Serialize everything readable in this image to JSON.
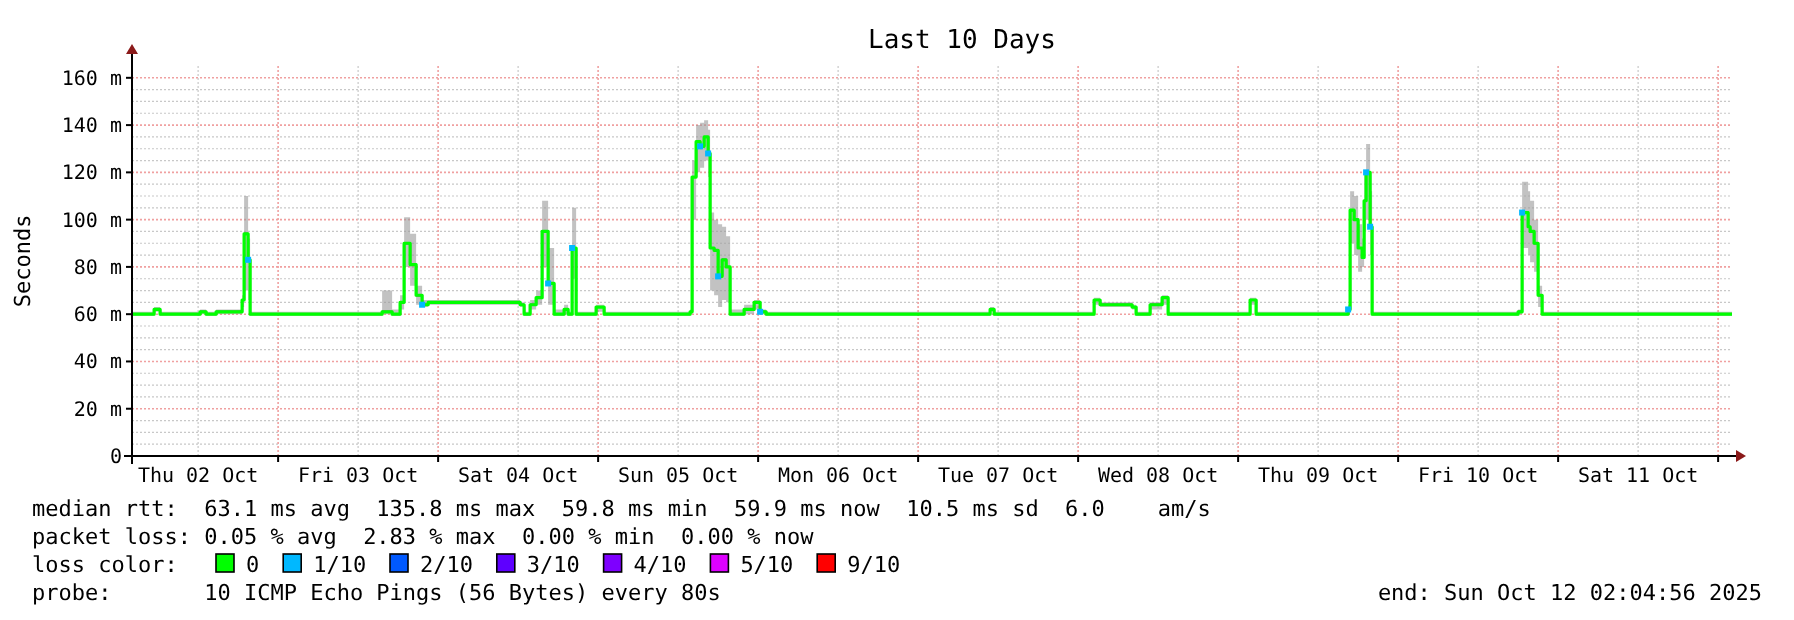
{
  "chart_data": {
    "type": "line",
    "title": "Last 10 Days",
    "ylabel": "Seconds",
    "legend_title": "loss color:",
    "legend": "bottom",
    "grid": true,
    "xlim": [
      "2025-10-02T02:05",
      "2025-10-12T02:05"
    ],
    "xticks": [
      {
        "value": "2025-10-02T12:00",
        "label": "Thu 02 Oct"
      },
      {
        "value": "2025-10-03T00:00",
        "label": null
      },
      {
        "value": "2025-10-03T12:00",
        "label": "Fri 03 Oct"
      },
      {
        "value": "2025-10-04T00:00",
        "label": null
      },
      {
        "value": "2025-10-04T12:00",
        "label": "Sat 04 Oct"
      },
      {
        "value": "2025-10-05T00:00",
        "label": null
      },
      {
        "value": "2025-10-05T12:00",
        "label": "Sun 05 Oct"
      },
      {
        "value": "2025-10-06T00:00",
        "label": null
      },
      {
        "value": "2025-10-06T12:00",
        "label": "Mon 06 Oct"
      },
      {
        "value": "2025-10-07T00:00",
        "label": null
      },
      {
        "value": "2025-10-07T12:00",
        "label": "Tue 07 Oct"
      },
      {
        "value": "2025-10-08T00:00",
        "label": null
      },
      {
        "value": "2025-10-08T12:00",
        "label": "Wed 08 Oct"
      },
      {
        "value": "2025-10-09T00:00",
        "label": null
      },
      {
        "value": "2025-10-09T12:00",
        "label": "Thu 09 Oct"
      },
      {
        "value": "2025-10-10T00:00",
        "label": null
      },
      {
        "value": "2025-10-10T12:00",
        "label": "Fri 10 Oct"
      },
      {
        "value": "2025-10-11T00:00",
        "label": null
      },
      {
        "value": "2025-10-11T12:00",
        "label": "Sat 11 Oct"
      },
      {
        "value": "2025-10-12T00:00",
        "label": null
      }
    ],
    "ylim": [
      0,
      165
    ],
    "yticks": [
      0,
      {
        "value": 20,
        "label": "20 m"
      },
      {
        "value": 40,
        "label": "40 m"
      },
      {
        "value": 60,
        "label": "60 m"
      },
      {
        "value": 80,
        "label": "80 m"
      },
      {
        "value": 100,
        "label": "100 m"
      },
      {
        "value": 120,
        "label": "120 m"
      },
      {
        "value": 140,
        "label": "140 m"
      },
      {
        "value": 160,
        "label": "160 m"
      }
    ],
    "series": [
      {
        "name": "0",
        "color": "#00ff00",
        "x": [
          "2025-10-02T02:06",
          "2025-10-02T05:24",
          "2025-10-02T06:18",
          "2025-10-02T12:18",
          "2025-10-02T13:12",
          "2025-10-02T14:42",
          "2025-10-02T17:42",
          "2025-10-02T18:36",
          "2025-10-02T18:54",
          "2025-10-02T19:30",
          "2025-10-02T19:48",
          "2025-10-02T20:42",
          "2025-10-03T15:36",
          "2025-10-03T17:06",
          "2025-10-03T18:18",
          "2025-10-03T18:54",
          "2025-10-03T19:48",
          "2025-10-03T20:42",
          "2025-10-03T21:36",
          "2025-10-03T22:30",
          "2025-10-04T12:18",
          "2025-10-04T12:54",
          "2025-10-04T13:48",
          "2025-10-04T14:42",
          "2025-10-04T15:36",
          "2025-10-04T16:30",
          "2025-10-04T17:24",
          "2025-10-04T18:54",
          "2025-10-04T19:30",
          "2025-10-04T20:06",
          "2025-10-04T20:42",
          "2025-10-04T22:48",
          "2025-10-04T23:42",
          "2025-10-05T00:54",
          "2025-10-05T13:48",
          "2025-10-05T14:06",
          "2025-10-05T14:42",
          "2025-10-05T15:18",
          "2025-10-05T15:54",
          "2025-10-05T16:30",
          "2025-10-05T16:48",
          "2025-10-05T17:24",
          "2025-10-05T18:00",
          "2025-10-05T18:36",
          "2025-10-05T19:12",
          "2025-10-05T19:48",
          "2025-10-05T21:54",
          "2025-10-05T23:24",
          "2025-10-06T00:18",
          "2025-10-06T01:12",
          "2025-10-07T10:12",
          "2025-10-07T10:48",
          "2025-10-07T11:24",
          "2025-10-08T01:48",
          "2025-10-08T02:24",
          "2025-10-08T03:18",
          "2025-10-08T08:06",
          "2025-10-08T08:42",
          "2025-10-08T10:12",
          "2025-10-08T10:48",
          "2025-10-08T12:36",
          "2025-10-08T13:30",
          "2025-10-09T01:12",
          "2025-10-09T01:48",
          "2025-10-09T02:42",
          "2025-10-09T15:54",
          "2025-10-09T16:30",
          "2025-10-09T16:48",
          "2025-10-09T17:24",
          "2025-10-09T18:00",
          "2025-10-09T18:36",
          "2025-10-09T18:54",
          "2025-10-09T19:12",
          "2025-10-09T19:48",
          "2025-10-09T20:06",
          "2025-10-10T18:00",
          "2025-10-10T18:36",
          "2025-10-10T19:30",
          "2025-10-10T19:48",
          "2025-10-10T20:24",
          "2025-10-10T21:00",
          "2025-10-10T21:36",
          "2025-10-12T02:05"
        ],
        "values": [
          60,
          62,
          60,
          61,
          60,
          61,
          61,
          66,
          94,
          83,
          60,
          60,
          61,
          60,
          65,
          90,
          81,
          68,
          64,
          65,
          64,
          60,
          64,
          67,
          95,
          73,
          60,
          62,
          60,
          88,
          60,
          60,
          63,
          60,
          61,
          118,
          133,
          131,
          135,
          128,
          88,
          87,
          76,
          83,
          80,
          60,
          62,
          65,
          61,
          60,
          60,
          62,
          60,
          60,
          66,
          64,
          63,
          60,
          60,
          64,
          67,
          60,
          60,
          66,
          60,
          60,
          62,
          104,
          100,
          88,
          84,
          108,
          120,
          97,
          60,
          61,
          103,
          97,
          95,
          90,
          68,
          60,
          60
        ],
        "lower": [
          60,
          61,
          60,
          60,
          60,
          60,
          60,
          63,
          70,
          66,
          60,
          60,
          60,
          60,
          62,
          80,
          72,
          64,
          63,
          64,
          63,
          60,
          62,
          64,
          80,
          64,
          60,
          60,
          60,
          75,
          60,
          60,
          61,
          60,
          60,
          100,
          120,
          122,
          125,
          118,
          70,
          68,
          63,
          66,
          65,
          60,
          60,
          62,
          60,
          60,
          60,
          61,
          60,
          60,
          64,
          63,
          62,
          60,
          60,
          62,
          64,
          60,
          60,
          64,
          60,
          60,
          60,
          90,
          85,
          78,
          80,
          95,
          100,
          85,
          60,
          60,
          88,
          85,
          82,
          78,
          63,
          60,
          60
        ],
        "upper": [
          61,
          63,
          61,
          62,
          61,
          62,
          62,
          68,
          110,
          92,
          61,
          61,
          70,
          62,
          68,
          101,
          94,
          72,
          66,
          66,
          65,
          61,
          66,
          70,
          108,
          88,
          62,
          64,
          61,
          105,
          61,
          61,
          64,
          61,
          62,
          125,
          140,
          141,
          142,
          138,
          103,
          100,
          98,
          97,
          93,
          62,
          64,
          66,
          62,
          61,
          61,
          63,
          61,
          61,
          67,
          65,
          64,
          61,
          61,
          65,
          68,
          61,
          61,
          67,
          61,
          61,
          64,
          112,
          110,
          98,
          92,
          120,
          132,
          112,
          61,
          62,
          116,
          112,
          108,
          100,
          72,
          61,
          61
        ]
      },
      {
        "name": "1/10",
        "type": "scatter",
        "color": "#00b8ff",
        "x": [
          "2025-10-02T19:30",
          "2025-10-03T21:36",
          "2025-10-04T16:30",
          "2025-10-04T20:06",
          "2025-10-05T15:18",
          "2025-10-05T16:30",
          "2025-10-05T18:00",
          "2025-10-06T00:18",
          "2025-10-09T16:30",
          "2025-10-09T19:12",
          "2025-10-09T19:48",
          "2025-10-10T18:36"
        ],
        "values": [
          83,
          64,
          73,
          88,
          131,
          128,
          76,
          61,
          62,
          120,
          97,
          103
        ]
      },
      {
        "name": "2/10",
        "type": "scatter",
        "color": "#0059ff"
      },
      {
        "name": "3/10",
        "type": "scatter",
        "color": "#5e00ff"
      },
      {
        "name": "4/10",
        "type": "scatter",
        "color": "#7e00ff"
      },
      {
        "name": "5/10",
        "type": "scatter",
        "color": "#dd00ff"
      },
      {
        "name": "9/10",
        "type": "scatter",
        "color": "#ff0000"
      }
    ],
    "annotations": [
      "median rtt:  63.1 ms avg  135.8 ms max  59.8 ms min  59.9 ms now  10.5 ms sd  6.0    am/s",
      "packet loss: 0.05 % avg  2.83 % max  0.00 % min  0.00 % now",
      "probe:       10 ICMP Echo Pings (56 Bytes) every 80s",
      "end: Sun Oct 12 02:04:56 2025"
    ]
  }
}
